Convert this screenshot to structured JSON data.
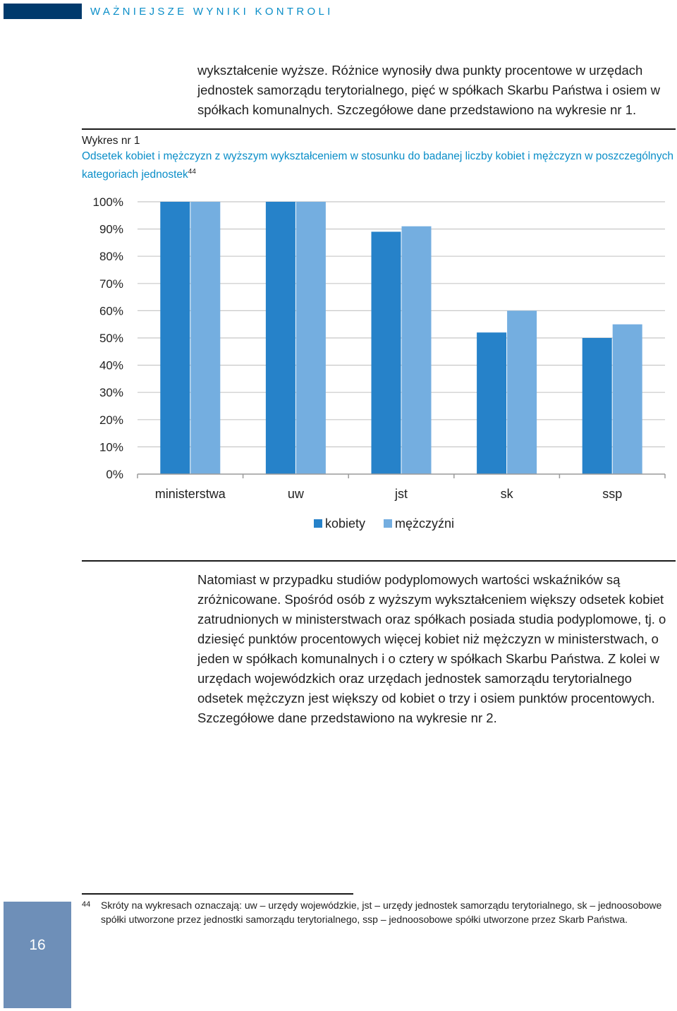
{
  "header": {
    "section_title": "WAŻNIEJSZE WYNIKI KONTROLI"
  },
  "paragraph_top": "wykształcenie wyższe. Różnice wynosiły dwa punkty procentowe w urzędach jednostek samorządu terytorialnego, pięć w spółkach Skarbu Państwa i osiem w spółkach komunalnych. Szczegółowe dane przedstawiono na wykresie nr 1.",
  "figure": {
    "number": "Wykres nr 1",
    "title": "Odsetek kobiet i mężczyzn z wyższym wykształceniem w stosunku do badanej liczby kobiet i mężczyzn w poszczególnych kategoriach jednostek",
    "footnote_ref": "44"
  },
  "chart_data": {
    "type": "bar",
    "categories": [
      "ministerstwa",
      "uw",
      "jst",
      "sk",
      "ssp"
    ],
    "series": [
      {
        "name": "kobiety",
        "values": [
          100,
          100,
          89,
          52,
          50
        ],
        "color": "#2682c9"
      },
      {
        "name": "mężczyźni",
        "values": [
          100,
          100,
          91,
          60,
          55
        ],
        "color": "#74aee0"
      }
    ],
    "y_ticks": [
      "0%",
      "10%",
      "20%",
      "30%",
      "40%",
      "50%",
      "60%",
      "70%",
      "80%",
      "90%",
      "100%"
    ],
    "ylim": [
      0,
      100
    ],
    "grid": true,
    "legend_position": "bottom-center"
  },
  "paragraph_bottom": "Natomiast w przypadku studiów podyplomowych wartości wskaźników są zróżnicowane. Spośród osób z wyższym wykształceniem większy odsetek kobiet zatrudnionych w ministerstwach oraz spółkach posiada studia podyplomowe, tj. o dziesięć punktów procentowych więcej kobiet niż mężczyzn w ministerstwach, o jeden w spółkach komunalnych i o cztery w spółkach Skarbu Państwa. Z kolei w urzędach wojewódzkich oraz urzędach jednostek samorządu terytorialnego odsetek mężczyzn jest większy od kobiet o trzy i osiem punktów procentowych. Szczegółowe dane przedstawiono na wykresie nr 2.",
  "footnote": {
    "number": "44",
    "text": "Skróty na wykresach oznaczają: uw – urzędy wojewódzkie, jst – urzędy jednostek samorządu terytorialnego, sk – jednoosobowe spółki utworzone przez jednostki samorządu terytorialnego, ssp – jednoosobowe spółki utworzone przez Skarb Państwa."
  },
  "page_number": "16",
  "colors": {
    "header_block": "#003a6c",
    "accent_text": "#0a8ec8",
    "page_tab": "#6e8fb8"
  }
}
